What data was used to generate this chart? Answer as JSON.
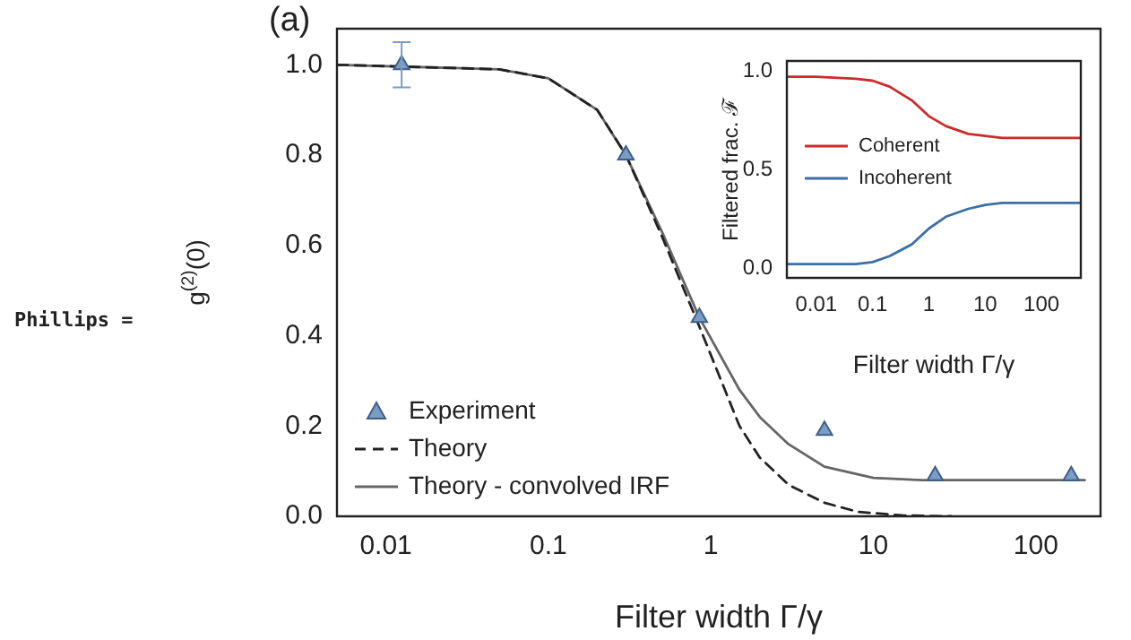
{
  "chart_data": [
    {
      "type": "line",
      "title": "(a)",
      "xlabel": "Filter width Γ/γ",
      "ylabel": "g$^{(2)}$(0)",
      "log": "x",
      "xlim": [
        0.005,
        250
      ],
      "ylim": [
        0,
        1.08
      ],
      "xticks": [
        0.01,
        0.1,
        1,
        10,
        100
      ],
      "yticks": [
        {
          "value": 0,
          "label": "0.0"
        },
        {
          "value": 0.2,
          "label": "0.2"
        },
        {
          "value": 0.4,
          "label": "0.4"
        },
        {
          "value": 0.6,
          "label": "0.6"
        },
        {
          "value": 0.8,
          "label": "0.8"
        },
        {
          "value": 1,
          "label": "1.0"
        }
      ],
      "legend": "bottom left",
      "annotations": [
        "Phillips ="
      ],
      "series": [
        {
          "name": "Experiment",
          "type": "scatter",
          "marker": "triangle",
          "color": "#7b9cc4",
          "x": [
            0.0125,
            0.3,
            0.85,
            5,
            24,
            165
          ],
          "values": [
            1.0,
            0.8,
            0.44,
            0.19,
            0.09,
            0.09
          ],
          "errors": [
            0.05,
            null,
            null,
            null,
            null,
            null
          ]
        },
        {
          "name": "Theory",
          "type": "line",
          "line_style": "dashed",
          "color": "#222222",
          "x": [
            0.005,
            0.05,
            0.1,
            0.2,
            0.3,
            0.5,
            0.85,
            1.5,
            2,
            3,
            5,
            8,
            15,
            30
          ],
          "values": [
            1.0,
            0.99,
            0.97,
            0.9,
            0.8,
            0.62,
            0.42,
            0.2,
            0.13,
            0.07,
            0.03,
            0.01,
            0.002,
            0
          ]
        },
        {
          "name": "Theory - convolved IRF",
          "type": "line",
          "line_style": "solid",
          "color": "#666666",
          "x": [
            0.005,
            0.05,
            0.1,
            0.2,
            0.3,
            0.5,
            0.85,
            1.5,
            2,
            3,
            5,
            10,
            20,
            50,
            200
          ],
          "values": [
            1.0,
            0.99,
            0.97,
            0.9,
            0.8,
            0.63,
            0.44,
            0.28,
            0.22,
            0.16,
            0.11,
            0.085,
            0.08,
            0.08,
            0.08
          ]
        }
      ]
    },
    {
      "type": "line",
      "xlabel": "Filter width Γ/γ",
      "ylabel": "Filtered frac. ℱ",
      "log": "x",
      "xlim": [
        0.003,
        500
      ],
      "ylim": [
        -0.05,
        1.05
      ],
      "xticks": [
        0.01,
        0.1,
        1,
        10,
        100
      ],
      "yticks": [
        {
          "value": 0,
          "label": "0.0"
        },
        {
          "value": 0.5,
          "label": "0.5"
        },
        {
          "value": 1,
          "label": "1.0"
        }
      ],
      "legend": "left",
      "series": [
        {
          "name": "Coherent",
          "type": "line",
          "line_style": "solid",
          "color": "#cc2b2b",
          "x": [
            0.003,
            0.01,
            0.05,
            0.1,
            0.2,
            0.5,
            1,
            2,
            5,
            10,
            20,
            50,
            500
          ],
          "values": [
            0.97,
            0.97,
            0.96,
            0.95,
            0.92,
            0.85,
            0.77,
            0.72,
            0.68,
            0.67,
            0.66,
            0.66,
            0.66
          ]
        },
        {
          "name": "Incoherent",
          "type": "line",
          "line_style": "solid",
          "color": "#3b6fa6",
          "x": [
            0.003,
            0.01,
            0.05,
            0.1,
            0.2,
            0.5,
            1,
            2,
            5,
            10,
            20,
            50,
            500
          ],
          "values": [
            0.02,
            0.02,
            0.02,
            0.03,
            0.06,
            0.12,
            0.2,
            0.26,
            0.3,
            0.32,
            0.33,
            0.33,
            0.33
          ]
        }
      ]
    }
  ]
}
